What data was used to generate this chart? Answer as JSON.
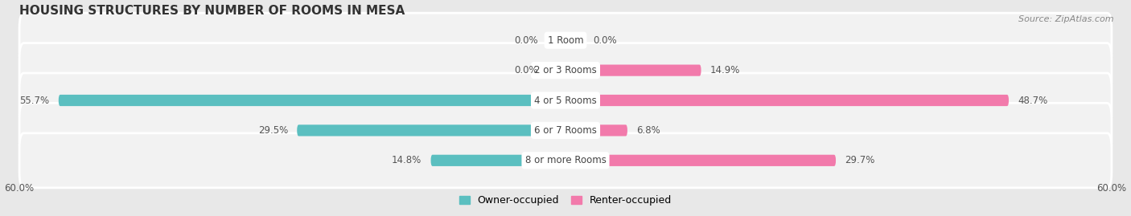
{
  "title": "HOUSING STRUCTURES BY NUMBER OF ROOMS IN MESA",
  "source": "Source: ZipAtlas.com",
  "categories": [
    "1 Room",
    "2 or 3 Rooms",
    "4 or 5 Rooms",
    "6 or 7 Rooms",
    "8 or more Rooms"
  ],
  "owner_values": [
    0.0,
    0.0,
    55.7,
    29.5,
    14.8
  ],
  "renter_values": [
    0.0,
    14.9,
    48.7,
    6.8,
    29.7
  ],
  "owner_color": "#5bbfc0",
  "renter_color": "#f27aab",
  "owner_color_light": "#a8dde0",
  "renter_color_light": "#f9b8d2",
  "background_color": "#e8e8e8",
  "row_bg_color": "#f2f2f2",
  "xlim": 60.0,
  "title_fontsize": 11,
  "source_fontsize": 8,
  "label_fontsize": 8.5,
  "legend_fontsize": 9,
  "category_fontsize": 8.5
}
